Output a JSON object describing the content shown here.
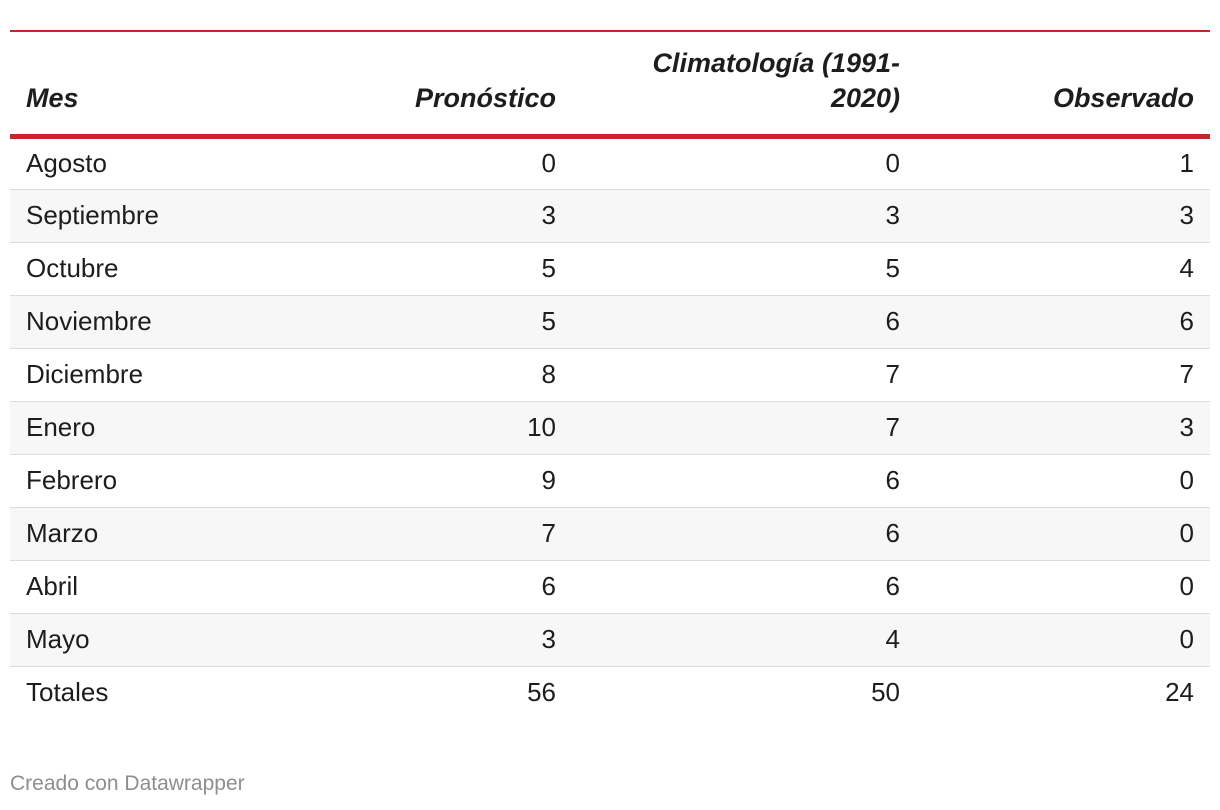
{
  "chart_data": {
    "type": "table",
    "columns": [
      "Mes",
      "Pronóstico",
      "Climatología (1991-2020)",
      "Observado"
    ],
    "rows": [
      [
        "Agosto",
        "0",
        "0",
        "1"
      ],
      [
        "Septiembre",
        "3",
        "3",
        "3"
      ],
      [
        "Octubre",
        "5",
        "5",
        "4"
      ],
      [
        "Noviembre",
        "5",
        "6",
        "6"
      ],
      [
        "Diciembre",
        "8",
        "7",
        "7"
      ],
      [
        "Enero",
        "10",
        "7",
        "3"
      ],
      [
        "Febrero",
        "9",
        "6",
        "0"
      ],
      [
        "Marzo",
        "7",
        "6",
        "0"
      ],
      [
        "Abril",
        "6",
        "6",
        "0"
      ],
      [
        "Mayo",
        "3",
        "4",
        "0"
      ]
    ],
    "totals": [
      "Totales",
      "56",
      "50",
      "24"
    ]
  },
  "footer": {
    "credit": "Creado con Datawrapper"
  },
  "colors": {
    "accent": "#c5262b",
    "stripe": "#f7f7f7",
    "credit_text": "#8e8e8e"
  }
}
